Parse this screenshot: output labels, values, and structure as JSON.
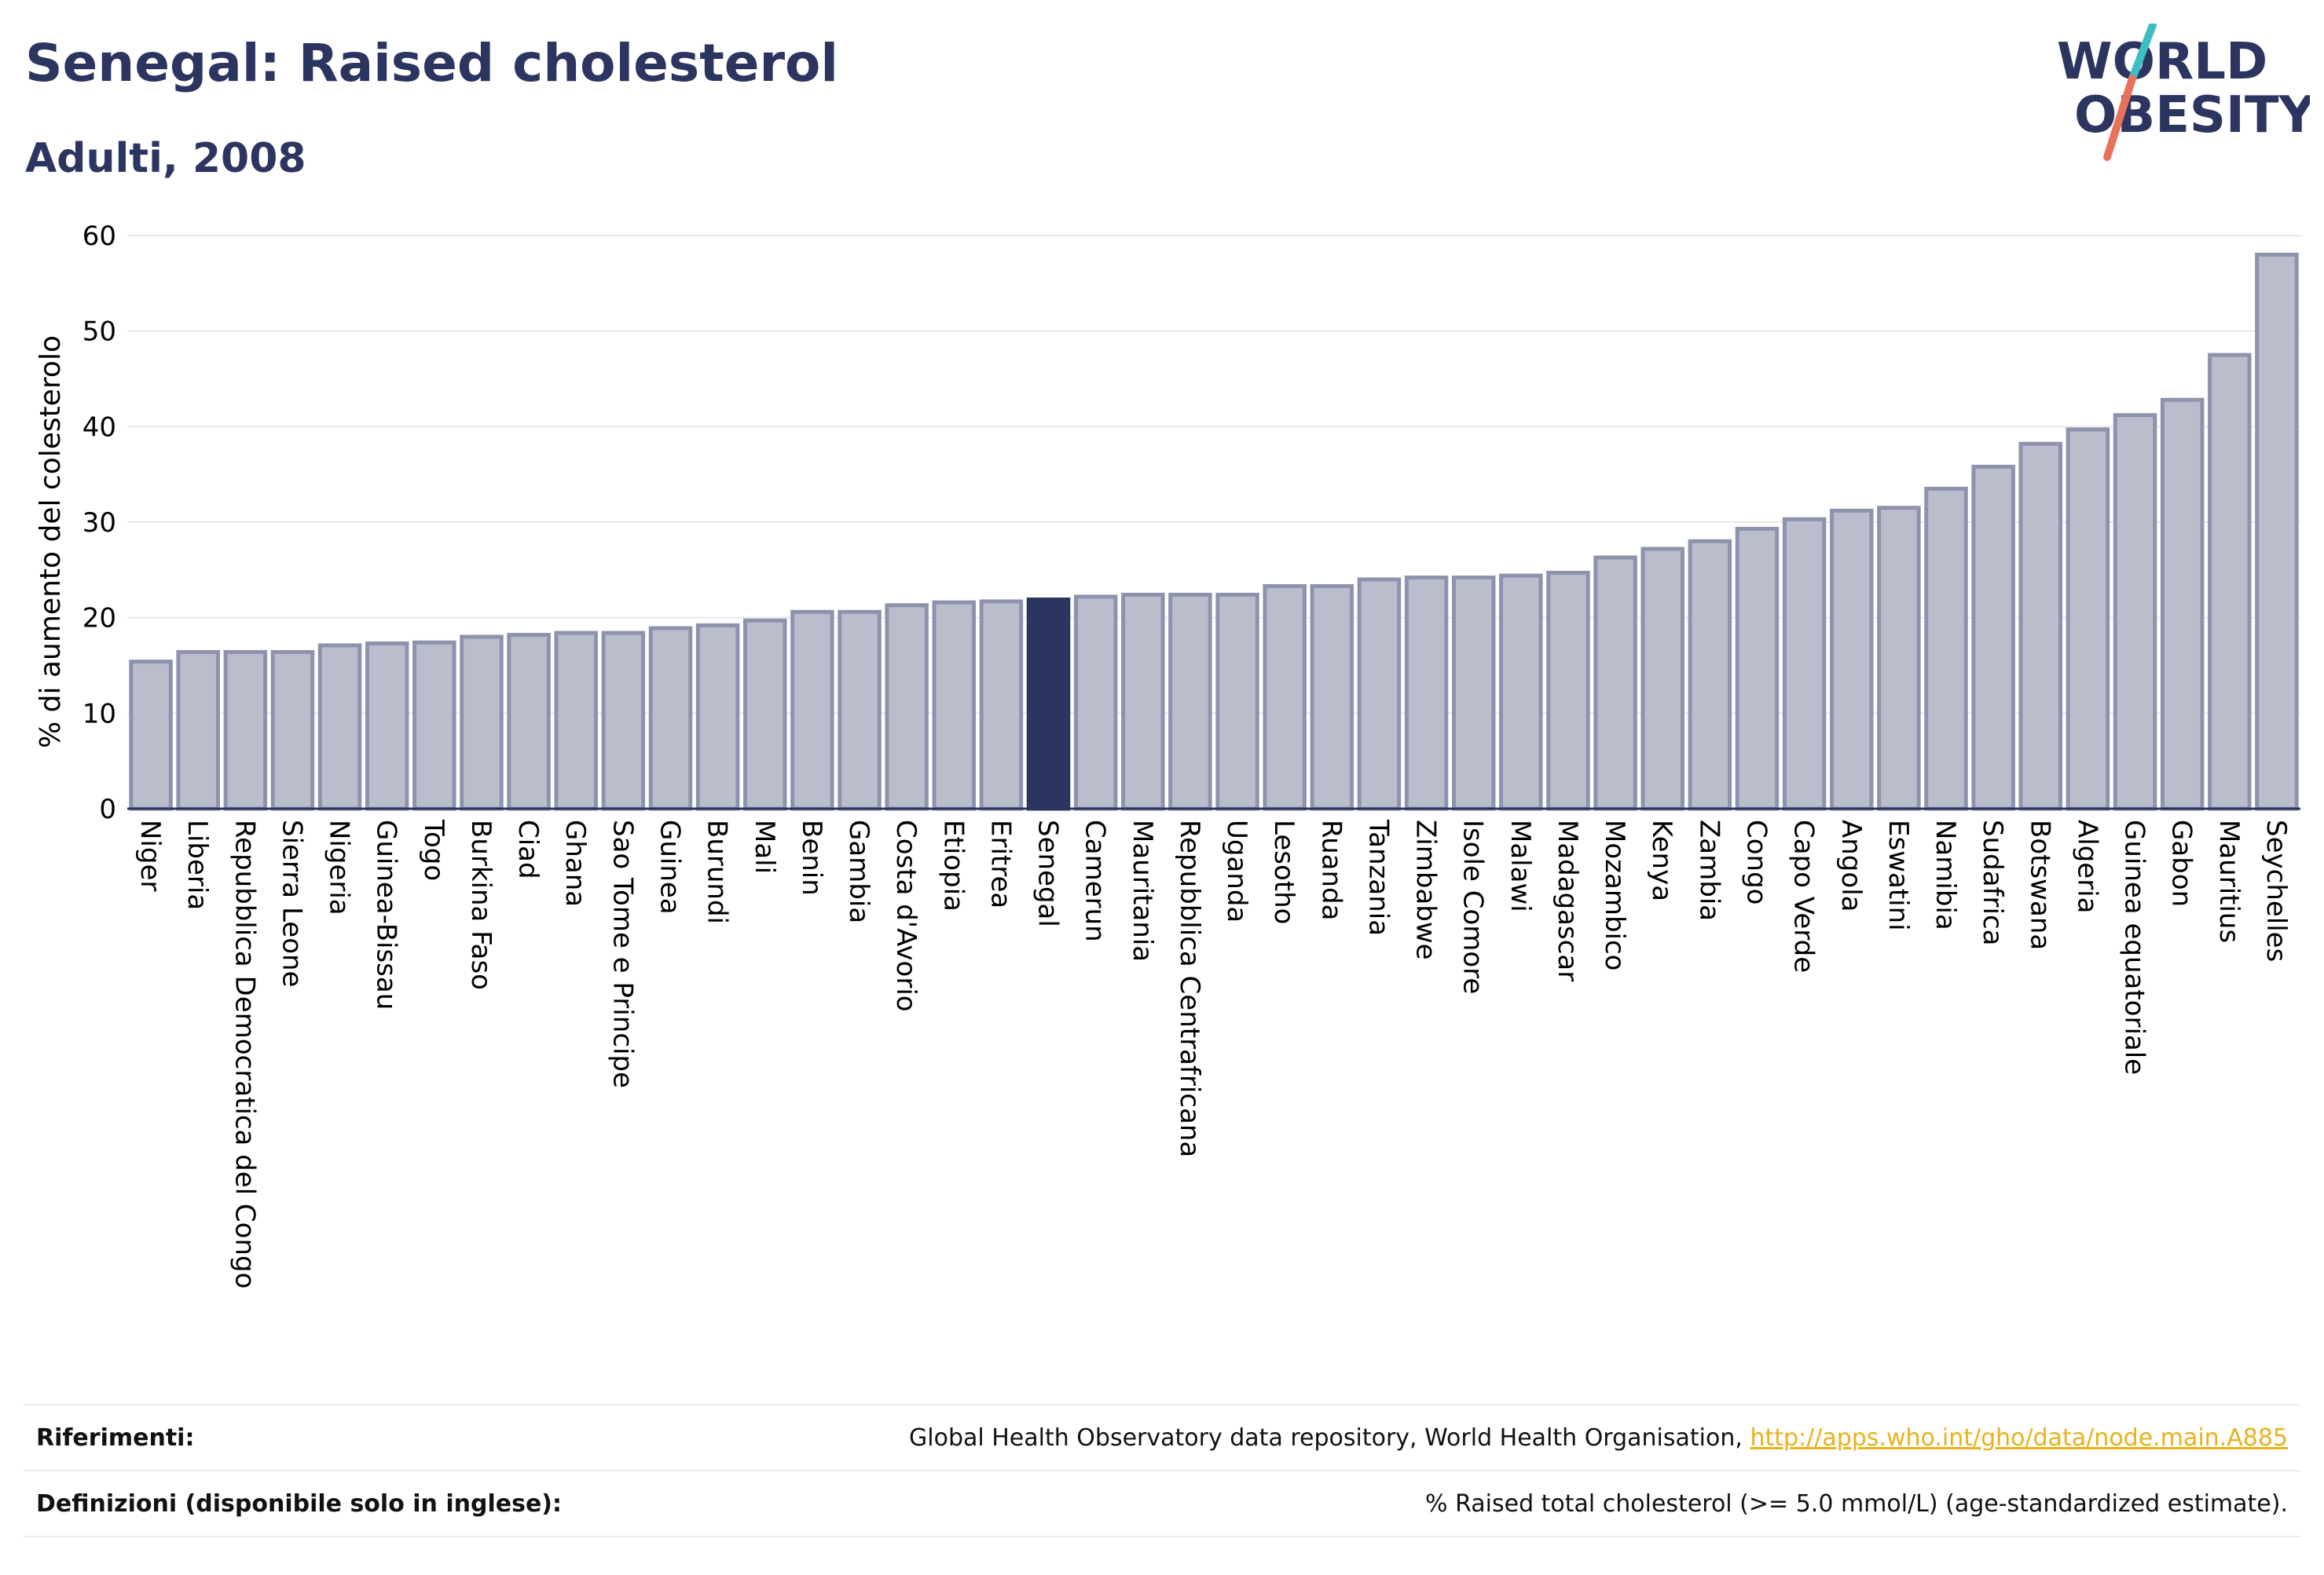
{
  "title": "Senegal: Raised cholesterol",
  "subtitle": "Adulti, 2008",
  "logo": {
    "line1": "WORLD",
    "line2": "OBESITY",
    "colors": {
      "text": "#2c3560",
      "slash_top": "#3bbfc4",
      "slash_bottom": "#e8715c"
    }
  },
  "colors": {
    "bar": "#b9bdcc",
    "bar_stroke": "#8d93ad",
    "highlight": "#2c3560",
    "grid": "#e6e8ee",
    "axis": "#2c3560"
  },
  "chart_data": {
    "type": "bar",
    "ylabel": "% di aumento del colesterolo",
    "ylim": [
      0,
      60
    ],
    "yticks": [
      0,
      10,
      20,
      30,
      40,
      50,
      60
    ],
    "grid": true,
    "highlight": "Senegal",
    "categories": [
      "Niger",
      "Liberia",
      "Repubblica Democratica del Congo",
      "Sierra Leone",
      "Nigeria",
      "Guinea-Bissau",
      "Togo",
      "Burkina Faso",
      "Ciad",
      "Ghana",
      "Sao Tome e Principe",
      "Guinea",
      "Burundi",
      "Mali",
      "Benin",
      "Gambia",
      "Costa d'Avorio",
      "Etiopia",
      "Eritrea",
      "Senegal",
      "Camerun",
      "Mauritania",
      "Repubblica Centrafricana",
      "Uganda",
      "Lesotho",
      "Ruanda",
      "Tanzania",
      "Zimbabwe",
      "Isole Comore",
      "Malawi",
      "Madagascar",
      "Mozambico",
      "Kenya",
      "Zambia",
      "Congo",
      "Capo Verde",
      "Angola",
      "Eswatini",
      "Namibia",
      "Sudafrica",
      "Botswana",
      "Algeria",
      "Guinea equatoriale",
      "Gabon",
      "Mauritius",
      "Seychelles"
    ],
    "values": [
      15.4,
      16.4,
      16.4,
      16.4,
      17.1,
      17.3,
      17.4,
      18.0,
      18.2,
      18.4,
      18.4,
      18.9,
      19.2,
      19.7,
      20.6,
      20.6,
      21.3,
      21.6,
      21.7,
      21.9,
      22.2,
      22.4,
      22.4,
      22.4,
      23.3,
      23.3,
      24.0,
      24.2,
      24.2,
      24.4,
      24.7,
      26.3,
      27.2,
      28.0,
      29.3,
      30.3,
      31.2,
      31.5,
      33.5,
      35.8,
      38.2,
      39.7,
      41.2,
      42.8,
      47.5,
      58.0
    ]
  },
  "footer": {
    "references_label": "Riferimenti:",
    "references_text": "Global Health Observatory data repository, World Health Organisation, ",
    "references_link": "http://apps.who.int/gho/data/node.main.A885",
    "definitions_label": "Definizioni (disponibile solo in inglese):",
    "definitions_text": "% Raised total cholesterol (>= 5.0 mmol/L) (age-standardized estimate)."
  }
}
